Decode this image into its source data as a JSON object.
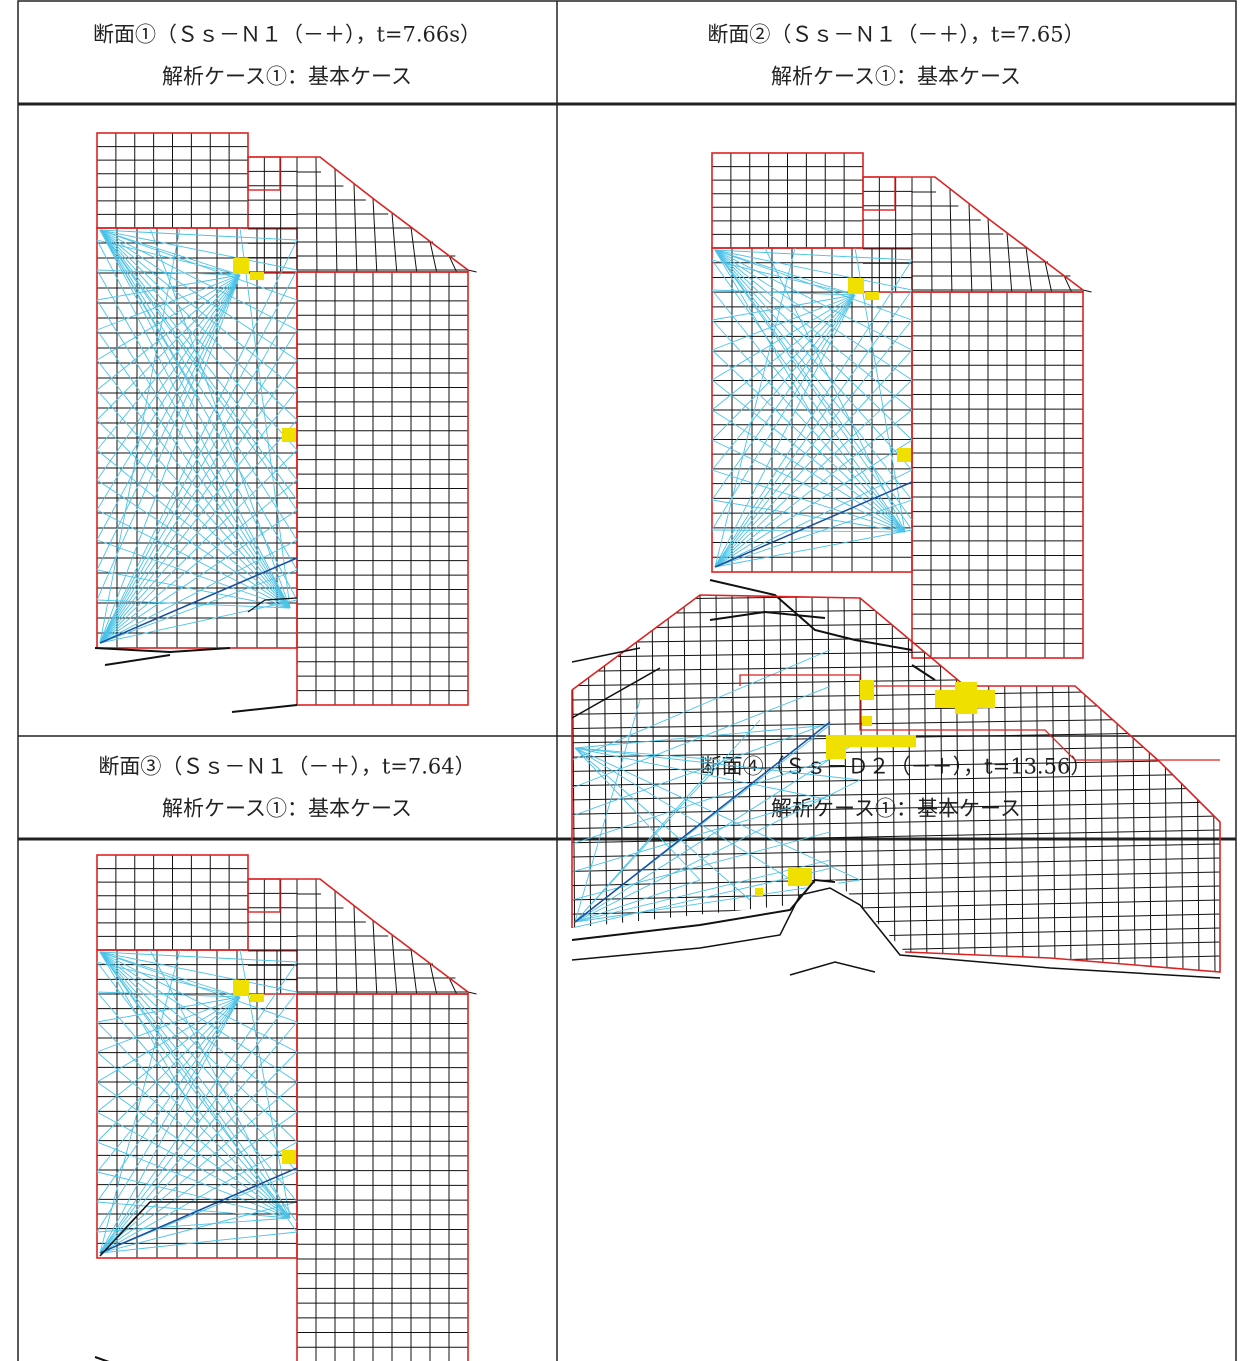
{
  "cells": [
    {
      "title": "断面①（Ｓｓ－Ｎ１（－＋），t=7.66s）",
      "case": "解析ケース①：基本ケース"
    },
    {
      "title": "断面②（Ｓｓ－Ｎ１（－＋），t=7.65）",
      "case": "解析ケース①：基本ケース"
    },
    {
      "title": "断面③（Ｓｓ－Ｎ１（－＋），t=7.64）",
      "case": "解析ケース①：基本ケース"
    },
    {
      "title": "断面④（Ｓｓ－Ｄ２（－＋），t=13.56）",
      "case": "解析ケース①：基本ケース"
    }
  ]
}
